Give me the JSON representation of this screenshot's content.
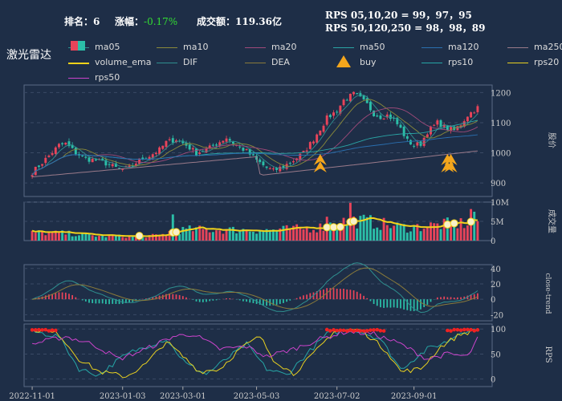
{
  "header": {
    "rank_label": "排名：",
    "rank_value": "6",
    "change_label": "涨幅：",
    "change_value": "-0.17%",
    "turnover_label": "成交额：",
    "turnover_value": "119.36亿",
    "rps_line1": "RPS 05,10,20 = 99，97，95",
    "rps_line2": "RPS 50,120,250 = 98，98，89"
  },
  "title": "激光雷达",
  "legend": [
    {
      "label": "ma05",
      "color": "#2f8f8f"
    },
    {
      "label": "ma10",
      "color": "#8a8a3a"
    },
    {
      "label": "ma20",
      "color": "#a04a7a"
    },
    {
      "label": "ma50",
      "color": "#2aa5a5"
    },
    {
      "label": "ma120",
      "color": "#2a6fb0"
    },
    {
      "label": "ma250",
      "color": "#9a7a8a"
    },
    {
      "label": "volume_ema",
      "color": "#f2d21a"
    },
    {
      "label": "DIF",
      "color": "#2f8f8f"
    },
    {
      "label": "DEA",
      "color": "#8a7a3a"
    },
    {
      "label": "buy",
      "color": "#f4a61c"
    },
    {
      "label": "rps10",
      "color": "#26a6a6"
    },
    {
      "label": "rps20",
      "color": "#e8d020"
    },
    {
      "label": "rps50",
      "color": "#cc44cc"
    }
  ],
  "colors": {
    "up": "#e8445a",
    "down": "#2bbfa8",
    "bg": "#1e2e47",
    "grid": "#3a4a65"
  },
  "chart_data": [
    {
      "type": "candlestick",
      "ylabel": "股价",
      "yticks": [
        900,
        1000,
        1100,
        1200
      ],
      "ylim": [
        855,
        1225
      ],
      "anchors": [
        [
          0,
          935
        ],
        [
          5,
          990
        ],
        [
          8,
          1025
        ],
        [
          10,
          1030
        ],
        [
          13,
          1000
        ],
        [
          16,
          980
        ],
        [
          19,
          975
        ],
        [
          22,
          965
        ],
        [
          26,
          945
        ],
        [
          29,
          950
        ],
        [
          32,
          975
        ],
        [
          35,
          990
        ],
        [
          38,
          1010
        ],
        [
          40,
          1035
        ],
        [
          43,
          1045
        ],
        [
          46,
          1025
        ],
        [
          49,
          1000
        ],
        [
          52,
          1010
        ],
        [
          55,
          1030
        ],
        [
          58,
          1050
        ],
        [
          61,
          1025
        ],
        [
          64,
          1005
        ],
        [
          67,
          975
        ],
        [
          70,
          950
        ],
        [
          72,
          940
        ],
        [
          75,
          955
        ],
        [
          78,
          975
        ],
        [
          81,
          1000
        ],
        [
          84,
          1045
        ],
        [
          86,
          1080
        ],
        [
          88,
          1115
        ],
        [
          91,
          1140
        ],
        [
          93,
          1175
        ],
        [
          96,
          1195
        ],
        [
          98,
          1180
        ],
        [
          100,
          1160
        ],
        [
          102,
          1130
        ],
        [
          104,
          1120
        ],
        [
          106,
          1125
        ],
        [
          108,
          1110
        ],
        [
          110,
          1080
        ],
        [
          112,
          1040
        ],
        [
          114,
          1025
        ],
        [
          116,
          1030
        ],
        [
          118,
          1070
        ],
        [
          121,
          1100
        ],
        [
          124,
          1080
        ],
        [
          126,
          1075
        ],
        [
          128,
          1095
        ],
        [
          130,
          1125
        ],
        [
          133,
          1150
        ]
      ],
      "ma_lines": [
        "ma05",
        "ma10",
        "ma20",
        "ma50",
        "ma120",
        "ma250"
      ],
      "buy_markers": [
        86,
        124,
        125
      ]
    },
    {
      "type": "bar",
      "ylabel": "成交量",
      "yticks": [
        "0",
        "5M",
        "10M"
      ],
      "ylim": [
        0,
        10000000
      ],
      "series": [
        "volume_ema"
      ],
      "volume_anchors": [
        [
          0,
          2100000
        ],
        [
          10,
          1900000
        ],
        [
          20,
          1200000
        ],
        [
          30,
          1100000
        ],
        [
          38,
          1300000
        ],
        [
          42,
          2600000
        ],
        [
          48,
          2900000
        ],
        [
          55,
          2800000
        ],
        [
          62,
          2800000
        ],
        [
          70,
          2700000
        ],
        [
          80,
          3100000
        ],
        [
          86,
          3500000
        ],
        [
          92,
          4800000
        ],
        [
          96,
          5200000
        ],
        [
          100,
          5000000
        ],
        [
          104,
          4400000
        ],
        [
          108,
          3800000
        ],
        [
          112,
          3400000
        ],
        [
          118,
          3800000
        ],
        [
          124,
          4300000
        ],
        [
          130,
          4500000
        ],
        [
          133,
          5200000
        ]
      ],
      "spikes": [
        [
          42,
          6800000
        ],
        [
          88,
          6200000
        ],
        [
          95,
          9800000
        ],
        [
          131,
          8200000
        ],
        [
          132,
          7500000
        ]
      ]
    },
    {
      "type": "line",
      "ylabel": "close-trend",
      "yticks": [
        -20,
        0,
        20,
        40
      ],
      "ylim": [
        -28,
        45
      ],
      "series": [
        "DIF",
        "DEA"
      ]
    },
    {
      "type": "line",
      "ylabel": "RPS",
      "yticks": [
        0,
        50,
        100
      ],
      "ylim": [
        -15,
        110
      ],
      "series": [
        "rps10",
        "rps20",
        "rps50"
      ]
    }
  ],
  "xticks": [
    "2022-11-01",
    "2023-01-03",
    "2023-03-01",
    "2023-05-03",
    "2023-07-02",
    "2023-09-01"
  ],
  "xtick_index": [
    0,
    27,
    45,
    67,
    91,
    114
  ],
  "n_bars": 134
}
